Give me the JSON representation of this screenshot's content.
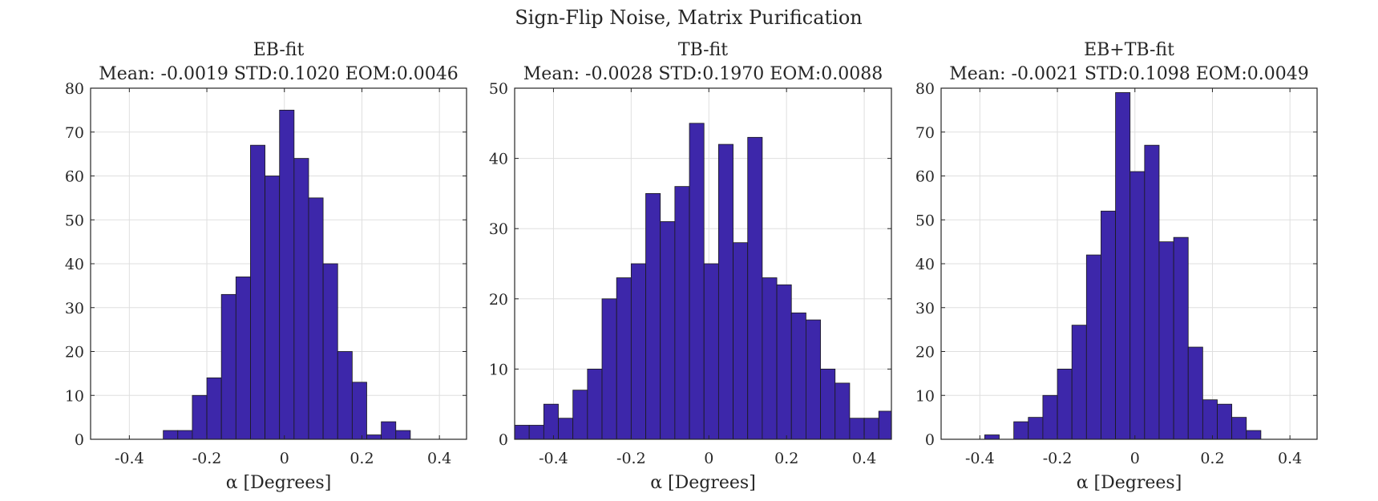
{
  "figure": {
    "title": "Sign-Flip Noise, Matrix Purification"
  },
  "colors": {
    "bar_fill": "#3d27aa",
    "bar_edge": "#1a1a1a",
    "grid": "#dfdfdf",
    "axis": "#262626"
  },
  "chart_data": [
    {
      "type": "bar",
      "title": "EB-fit",
      "subtitle": "Mean: -0.0019 STD:0.1020 EOM:0.0046",
      "xlabel": "α [Degrees]",
      "ylabel": "",
      "xlim": [
        -0.5,
        0.47
      ],
      "ylim": [
        0,
        80
      ],
      "xticks": [
        "-0.4",
        "-0.2",
        "0",
        "0.2",
        "0.4"
      ],
      "xtick_values": [
        -0.4,
        -0.2,
        0,
        0.2,
        0.4
      ],
      "yticks": [
        "0",
        "10",
        "20",
        "30",
        "40",
        "50",
        "60",
        "70",
        "80"
      ],
      "ytick_values": [
        0,
        10,
        20,
        30,
        40,
        50,
        60,
        70,
        80
      ],
      "grid": true,
      "bin_start": -0.5,
      "bin_width": 0.0375,
      "values": [
        0,
        0,
        0,
        0,
        0,
        2,
        2,
        10,
        14,
        33,
        37,
        67,
        60,
        75,
        64,
        55,
        40,
        20,
        13,
        1,
        4,
        2,
        0,
        0,
        0,
        0
      ]
    },
    {
      "type": "bar",
      "title": "TB-fit",
      "subtitle": "Mean: -0.0028 STD:0.1970 EOM:0.0088",
      "xlabel": "α [Degrees]",
      "ylabel": "",
      "xlim": [
        -0.5,
        0.47
      ],
      "ylim": [
        0,
        50
      ],
      "xticks": [
        "-0.4",
        "-0.2",
        "0",
        "0.2",
        "0.4"
      ],
      "xtick_values": [
        -0.4,
        -0.2,
        0,
        0.2,
        0.4
      ],
      "yticks": [
        "0",
        "10",
        "20",
        "30",
        "40",
        "50"
      ],
      "ytick_values": [
        0,
        10,
        20,
        30,
        40,
        50
      ],
      "grid": true,
      "bin_start": -0.5,
      "bin_width": 0.0375,
      "values": [
        2,
        2,
        5,
        3,
        7,
        10,
        20,
        23,
        25,
        35,
        31,
        36,
        45,
        25,
        42,
        28,
        43,
        23,
        22,
        18,
        17,
        10,
        8,
        3,
        3,
        4
      ]
    },
    {
      "type": "bar",
      "title": "EB+TB-fit",
      "subtitle": "Mean: -0.0021 STD:0.1098 EOM:0.0049",
      "xlabel": "α [Degrees]",
      "ylabel": "",
      "xlim": [
        -0.5,
        0.47
      ],
      "ylim": [
        0,
        80
      ],
      "xticks": [
        "-0.4",
        "-0.2",
        "0",
        "0.2",
        "0.4"
      ],
      "xtick_values": [
        -0.4,
        -0.2,
        0,
        0.2,
        0.4
      ],
      "yticks": [
        "0",
        "10",
        "20",
        "30",
        "40",
        "50",
        "60",
        "70",
        "80"
      ],
      "ytick_values": [
        0,
        10,
        20,
        30,
        40,
        50,
        60,
        70,
        80
      ],
      "grid": true,
      "bin_start": -0.5,
      "bin_width": 0.0375,
      "values": [
        0,
        0,
        0,
        1,
        0,
        4,
        5,
        10,
        16,
        26,
        42,
        52,
        79,
        61,
        67,
        45,
        46,
        21,
        9,
        8,
        5,
        2,
        0,
        0,
        0,
        0
      ]
    }
  ]
}
